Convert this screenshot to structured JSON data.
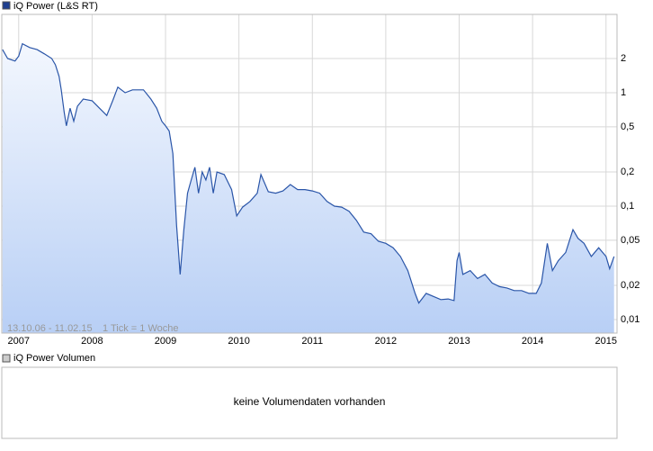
{
  "chart_data": {
    "type": "line",
    "legend_title": "iQ Power (L&S RT)",
    "range_note": "13.10.06 - 11.02.15",
    "tick_note": "1 Tick = 1 Woche",
    "log_scale": true,
    "grid": true,
    "x": [
      2006.78,
      2006.85,
      2006.95,
      2007.0,
      2007.05,
      2007.15,
      2007.25,
      2007.35,
      2007.45,
      2007.5,
      2007.55,
      2007.58,
      2007.62,
      2007.65,
      2007.7,
      2007.75,
      2007.8,
      2007.88,
      2008.0,
      2008.1,
      2008.2,
      2008.28,
      2008.35,
      2008.45,
      2008.55,
      2008.7,
      2008.8,
      2008.88,
      2008.95,
      2009.0,
      2009.05,
      2009.1,
      2009.15,
      2009.2,
      2009.25,
      2009.3,
      2009.35,
      2009.4,
      2009.45,
      2009.5,
      2009.55,
      2009.6,
      2009.65,
      2009.7,
      2009.8,
      2009.9,
      2009.97,
      2010.05,
      2010.15,
      2010.25,
      2010.3,
      2010.4,
      2010.5,
      2010.6,
      2010.7,
      2010.8,
      2010.9,
      2011.0,
      2011.1,
      2011.2,
      2011.3,
      2011.4,
      2011.5,
      2011.6,
      2011.7,
      2011.8,
      2011.9,
      2012.0,
      2012.1,
      2012.2,
      2012.3,
      2012.4,
      2012.45,
      2012.55,
      2012.65,
      2012.75,
      2012.85,
      2012.93,
      2012.97,
      2013.0,
      2013.05,
      2013.15,
      2013.25,
      2013.35,
      2013.45,
      2013.55,
      2013.65,
      2013.75,
      2013.85,
      2013.95,
      2014.05,
      2014.12,
      2014.2,
      2014.27,
      2014.35,
      2014.45,
      2014.55,
      2014.62,
      2014.7,
      2014.8,
      2014.9,
      2015.0,
      2015.05,
      2015.11
    ],
    "series": [
      {
        "name": "iQ Power (L&S RT)",
        "color": "#2a55a8",
        "values": [
          2.4,
          2.0,
          1.9,
          2.1,
          2.7,
          2.5,
          2.4,
          2.2,
          2.0,
          1.76,
          1.39,
          1.06,
          0.67,
          0.51,
          0.73,
          0.56,
          0.76,
          0.88,
          0.85,
          0.73,
          0.63,
          0.85,
          1.12,
          1.0,
          1.06,
          1.06,
          0.88,
          0.73,
          0.56,
          0.51,
          0.46,
          0.29,
          0.068,
          0.025,
          0.062,
          0.13,
          0.17,
          0.22,
          0.13,
          0.2,
          0.17,
          0.22,
          0.13,
          0.2,
          0.19,
          0.14,
          0.082,
          0.098,
          0.11,
          0.13,
          0.19,
          0.134,
          0.13,
          0.136,
          0.155,
          0.14,
          0.14,
          0.136,
          0.13,
          0.11,
          0.1,
          0.098,
          0.09,
          0.075,
          0.059,
          0.057,
          0.049,
          0.047,
          0.043,
          0.036,
          0.027,
          0.017,
          0.014,
          0.017,
          0.016,
          0.015,
          0.0152,
          0.0147,
          0.033,
          0.039,
          0.025,
          0.027,
          0.023,
          0.025,
          0.021,
          0.0195,
          0.019,
          0.018,
          0.018,
          0.017,
          0.017,
          0.021,
          0.047,
          0.027,
          0.033,
          0.039,
          0.062,
          0.052,
          0.047,
          0.036,
          0.043,
          0.036,
          0.028,
          0.036
        ]
      }
    ],
    "xlim": [
      2006.77,
      2015.15
    ],
    "xticks": [
      2007,
      2008,
      2009,
      2010,
      2011,
      2012,
      2013,
      2014,
      2015
    ],
    "ylim": [
      0.0076,
      4.9
    ],
    "yticks": [
      {
        "value": 0.01,
        "label": "0,01"
      },
      {
        "value": 0.02,
        "label": "0,02"
      },
      {
        "value": 0.05,
        "label": "0,05"
      },
      {
        "value": 0.1,
        "label": "0,1"
      },
      {
        "value": 0.2,
        "label": "0,2"
      },
      {
        "value": 0.5,
        "label": "0,5"
      },
      1,
      2
    ]
  },
  "volume_panel": {
    "legend_title": "iQ Power Volumen",
    "message": "keine Volumendaten vorhanden"
  }
}
